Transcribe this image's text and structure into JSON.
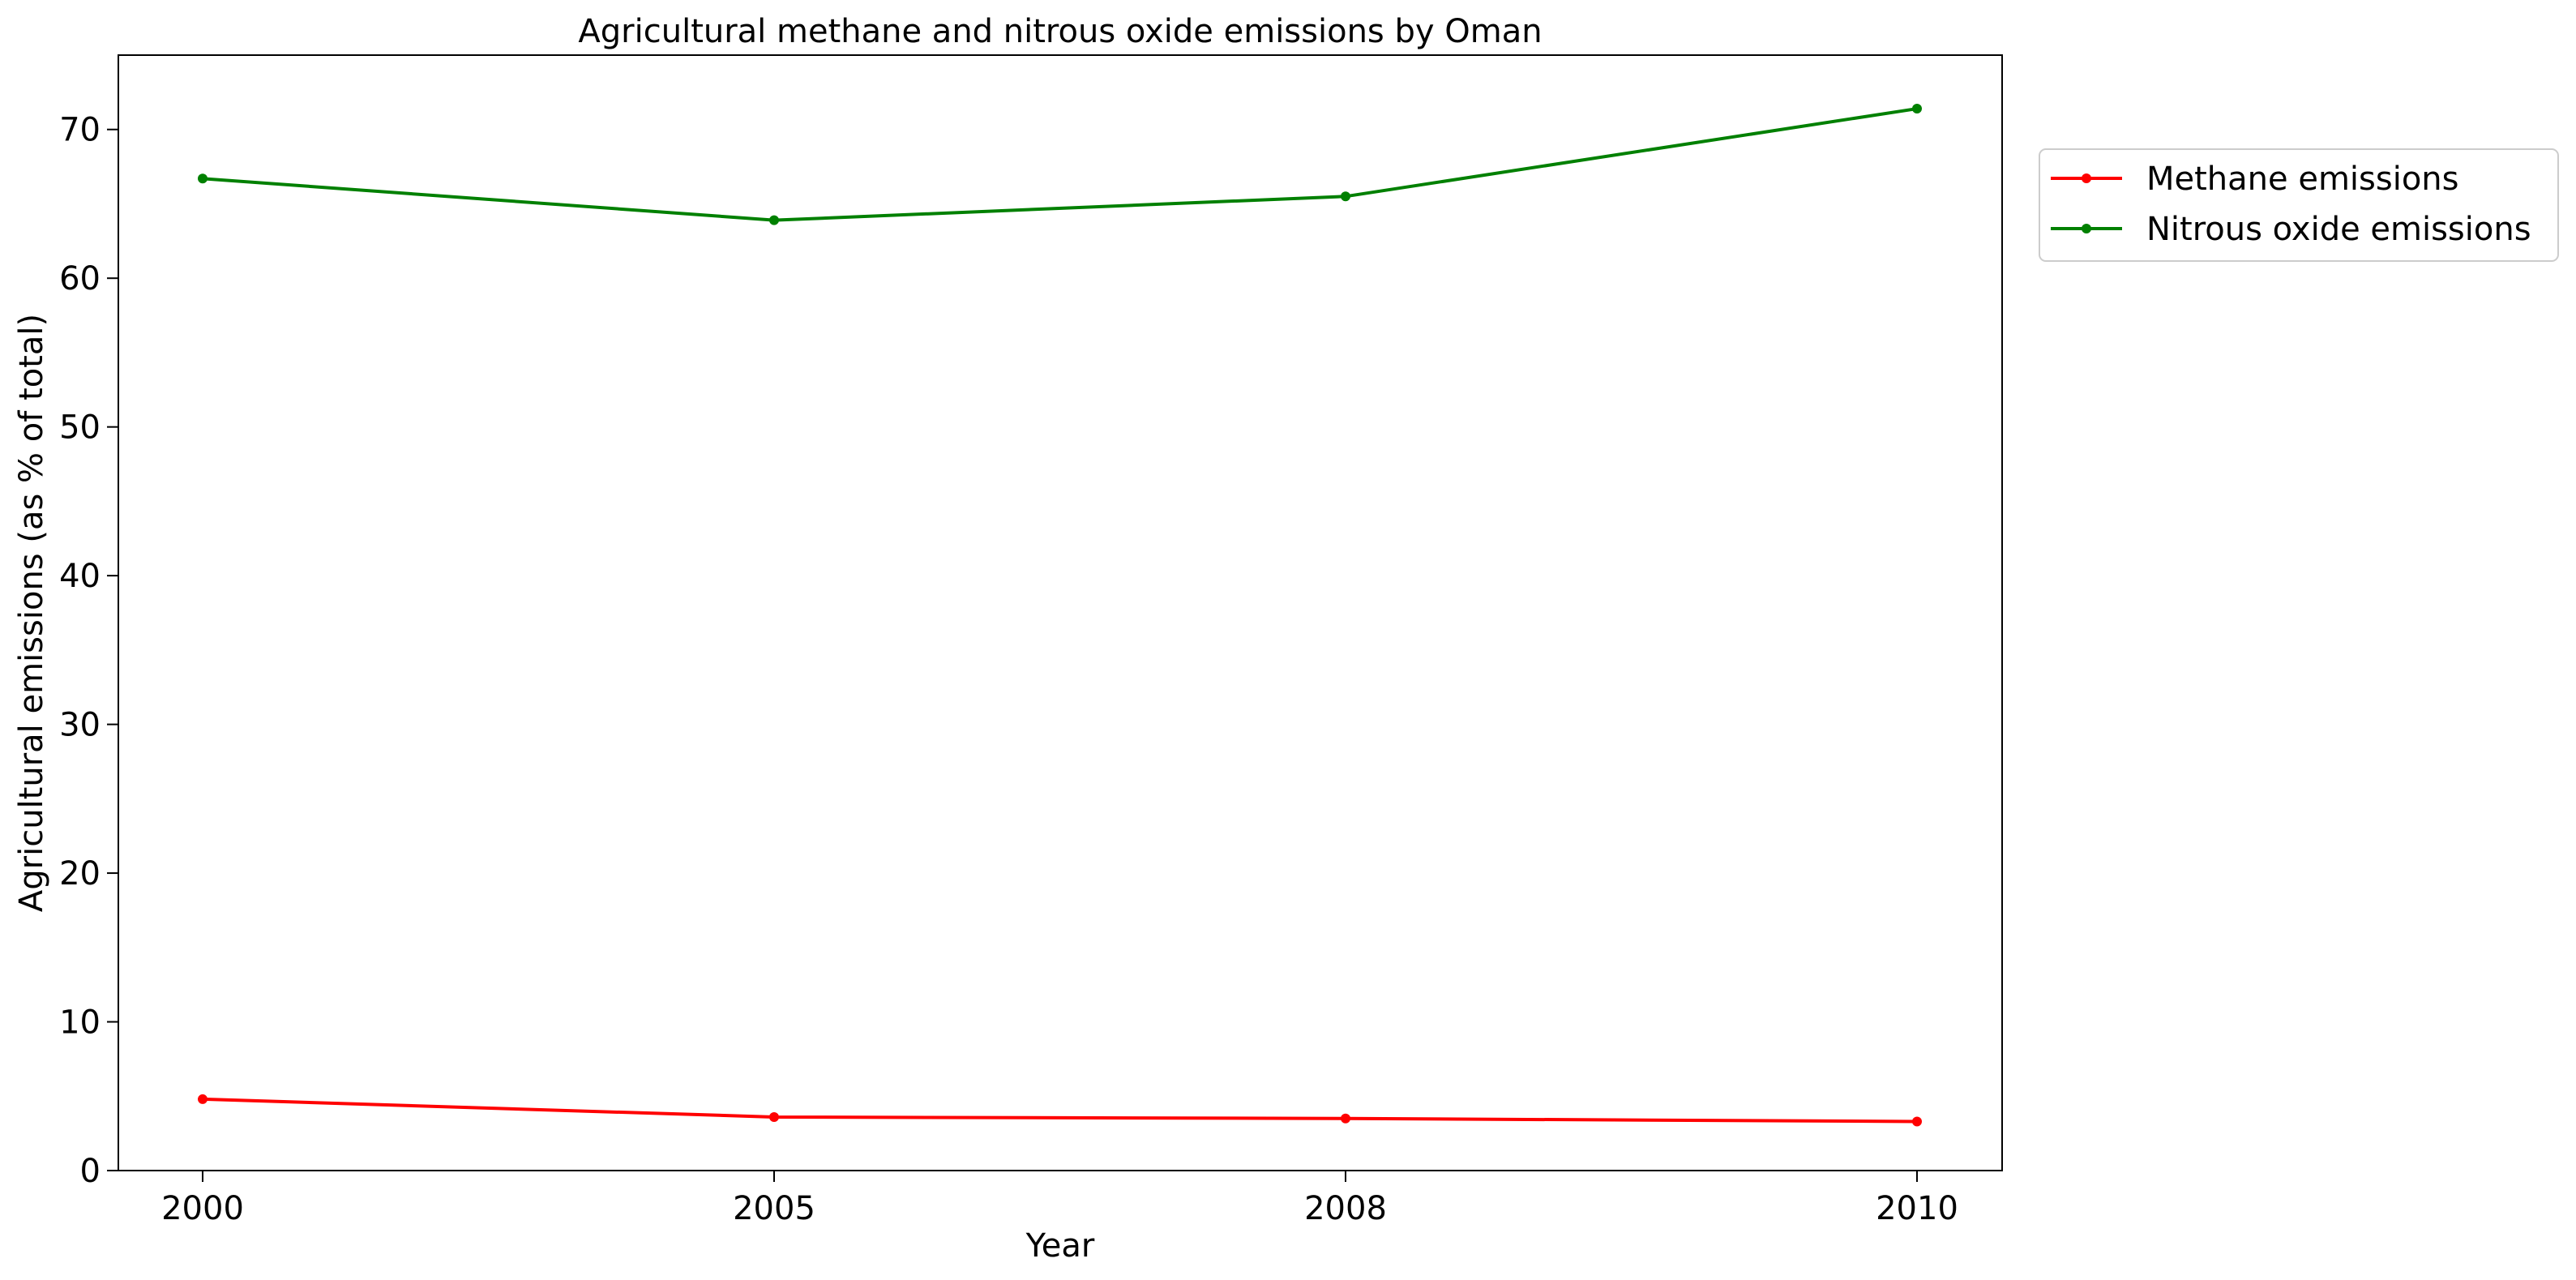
{
  "chart_data": {
    "type": "line",
    "title": "Agricultural methane and nitrous oxide emissions by Oman",
    "xlabel": "Year",
    "ylabel": "Agricultural emissions (as % of total)",
    "categories": [
      "2000",
      "2005",
      "2008",
      "2010"
    ],
    "ylim": [
      0,
      75
    ],
    "yticks": [
      0,
      10,
      20,
      30,
      40,
      50,
      60,
      70
    ],
    "grid": false,
    "legend_position": "outside-top-right",
    "series": [
      {
        "name": "Methane emissions",
        "color": "#ff0000",
        "values": [
          4.8,
          3.6,
          3.5,
          3.3
        ]
      },
      {
        "name": "Nitrous oxide emissions",
        "color": "#008000",
        "values": [
          66.7,
          63.9,
          65.5,
          71.4
        ]
      }
    ]
  }
}
